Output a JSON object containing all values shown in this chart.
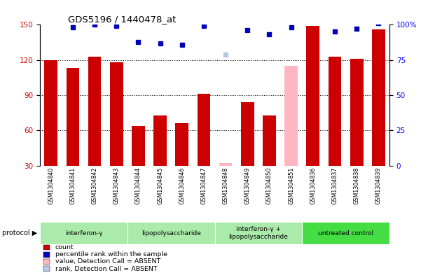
{
  "title": "GDS5196 / 1440478_at",
  "samples": [
    "GSM1304840",
    "GSM1304841",
    "GSM1304842",
    "GSM1304843",
    "GSM1304844",
    "GSM1304845",
    "GSM1304846",
    "GSM1304847",
    "GSM1304848",
    "GSM1304849",
    "GSM1304850",
    "GSM1304851",
    "GSM1304836",
    "GSM1304837",
    "GSM1304838",
    "GSM1304839"
  ],
  "red_values": [
    120,
    113,
    123,
    118,
    64,
    73,
    66,
    91,
    null,
    84,
    73,
    null,
    149,
    123,
    121,
    146
  ],
  "blue_values": [
    103,
    98,
    100,
    99,
    88,
    87,
    86,
    99,
    null,
    96,
    93,
    98,
    107,
    95,
    97,
    101
  ],
  "absent_red_values": [
    null,
    null,
    null,
    null,
    null,
    null,
    null,
    null,
    32,
    null,
    null,
    115,
    null,
    null,
    null,
    null
  ],
  "absent_blue_values": [
    null,
    null,
    null,
    null,
    null,
    null,
    null,
    null,
    79,
    null,
    null,
    null,
    null,
    null,
    null,
    null
  ],
  "protocols": [
    {
      "label": "interferon-γ",
      "start": 0,
      "end": 4,
      "color": "#aaeaaa"
    },
    {
      "label": "lipopolysaccharide",
      "start": 4,
      "end": 8,
      "color": "#aaeaaa"
    },
    {
      "label": "interferon-γ +\nlipopolysaccharide",
      "start": 8,
      "end": 12,
      "color": "#aaeaaa"
    },
    {
      "label": "untreated control",
      "start": 12,
      "end": 16,
      "color": "#44dd44"
    }
  ],
  "ylim_left": [
    30,
    150
  ],
  "ylim_right": [
    0,
    100
  ],
  "yticks_left": [
    30,
    60,
    90,
    120,
    150
  ],
  "yticks_right": [
    0,
    25,
    50,
    75,
    100
  ],
  "bar_color_red": "#CC0000",
  "bar_color_blue": "#0000BB",
  "bar_color_absent_red": "#FFB6C1",
  "bar_color_absent_blue": "#B8C8E8",
  "legend_items": [
    {
      "label": "count",
      "color": "#CC0000"
    },
    {
      "label": "percentile rank within the sample",
      "color": "#0000BB"
    },
    {
      "label": "value, Detection Call = ABSENT",
      "color": "#FFB6C1"
    },
    {
      "label": "rank, Detection Call = ABSENT",
      "color": "#B8C8E8"
    }
  ]
}
